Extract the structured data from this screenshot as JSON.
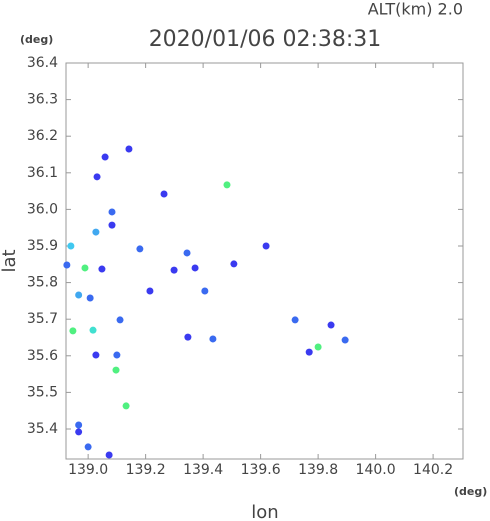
{
  "header": "ALT(km)  2.0",
  "chart_data": {
    "type": "scatter",
    "title": "2020/01/06 02:38:31",
    "x_unit": "(deg)",
    "y_unit": "(deg)",
    "x_label": "lon",
    "y_label": "lat",
    "xlim": [
      138.923,
      140.304
    ],
    "ylim": [
      35.318,
      36.4
    ],
    "xticks": [
      {
        "value": 139,
        "label": "139.0"
      },
      139.2,
      139.4,
      139.6,
      139.8,
      {
        "value": 140,
        "label": "140.0"
      },
      140.2
    ],
    "yticks": [
      35.4,
      35.5,
      35.6,
      35.7,
      35.8,
      35.9,
      {
        "value": 36,
        "label": "36.0"
      },
      36.1,
      36.2,
      36.3,
      36.4
    ],
    "grid": false,
    "x": [
      139.142,
      139.059,
      139.031,
      139.083,
      139.083,
      138.94,
      138.989,
      138.967,
      139.007,
      138.947,
      139.017,
      139.027,
      139.1,
      139.097,
      139.132,
      138.967,
      138.967,
      139.073,
      139.0,
      138.926,
      139.264,
      139.344,
      139.372,
      139.299,
      139.507,
      139.619,
      139.434,
      139.347,
      139.483,
      139.845,
      139.894,
      139.8,
      139.72,
      139.769,
      139.406,
      139.215,
      139.18,
      139.048,
      139.027,
      139.111
    ],
    "y": [
      36.165,
      36.143,
      36.089,
      35.993,
      35.957,
      35.9,
      35.84,
      35.766,
      35.758,
      35.668,
      35.67,
      35.602,
      35.602,
      35.561,
      35.463,
      35.411,
      35.392,
      35.329,
      35.351,
      35.848,
      36.042,
      35.881,
      35.84,
      35.834,
      35.851,
      35.9,
      35.646,
      35.651,
      36.067,
      35.684,
      35.643,
      35.624,
      35.698,
      35.61,
      35.777,
      35.777,
      35.892,
      35.837,
      35.938,
      35.698
    ],
    "colors": [
      "#3a3af0",
      "#3a3af0",
      "#3a3af0",
      "#3a6af0",
      "#3a3af0",
      "#40c8f0",
      "#50f080",
      "#40a8f0",
      "#3a6af0",
      "#50f080",
      "#40e0d0",
      "#3a3af0",
      "#3a6af0",
      "#50f080",
      "#50f080",
      "#3a6af0",
      "#3a3af0",
      "#3a3af0",
      "#3a6af0",
      "#3a6af0",
      "#3a3af0",
      "#3a6af0",
      "#3a3af0",
      "#3a3af0",
      "#3a3af0",
      "#3a3af0",
      "#3a6af0",
      "#3a3af0",
      "#50f080",
      "#3a3af0",
      "#3a6af0",
      "#50f080",
      "#3a6af0",
      "#3a3af0",
      "#3a6af0",
      "#3a3af0",
      "#3a6af0",
      "#3a3af0",
      "#40a8f0",
      "#3a6af0"
    ]
  }
}
